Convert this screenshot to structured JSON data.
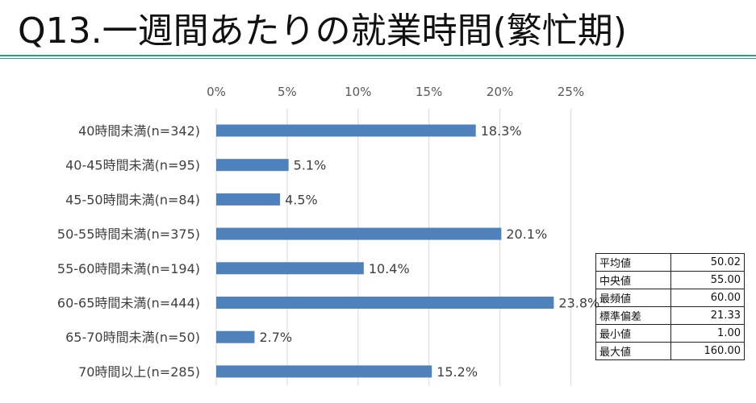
{
  "page_title": "Q13.一週間あたりの就業時間(繁忙期)",
  "colors": {
    "bar": "#4f81bd",
    "rule": "#2e9e7e",
    "grid": "#d9d9d9"
  },
  "chart_data": {
    "type": "bar",
    "orientation": "horizontal",
    "title": "",
    "xlabel": "",
    "ylabel": "",
    "xlim": [
      0,
      25
    ],
    "x_ticks": [
      "0%",
      "5%",
      "10%",
      "15%",
      "20%",
      "25%"
    ],
    "x_tick_values": [
      0,
      5,
      10,
      15,
      20,
      25
    ],
    "grid": true,
    "categories": [
      "40時間未満(n=342)",
      "40-45時間未満(n=95)",
      "45-50時間未満(n=84)",
      "50-55時間未満(n=375)",
      "55-60時間未満(n=194)",
      "60-65時間未満(n=444)",
      "65-70時間未満(n=50)",
      "70時間以上(n=285)"
    ],
    "values": [
      18.3,
      5.1,
      4.5,
      20.1,
      10.4,
      23.8,
      2.7,
      15.2
    ],
    "data_labels": [
      "18.3%",
      "5.1%",
      "4.5%",
      "20.1%",
      "10.4%",
      "23.8%",
      "2.7%",
      "15.2%"
    ]
  },
  "stats_table": [
    {
      "label": "平均値",
      "value": "50.02"
    },
    {
      "label": "中央値",
      "value": "55.00"
    },
    {
      "label": "最頻値",
      "value": "60.00"
    },
    {
      "label": "標準偏差",
      "value": "21.33"
    },
    {
      "label": "最小値",
      "value": "1.00"
    },
    {
      "label": "最大値",
      "value": "160.00"
    }
  ]
}
